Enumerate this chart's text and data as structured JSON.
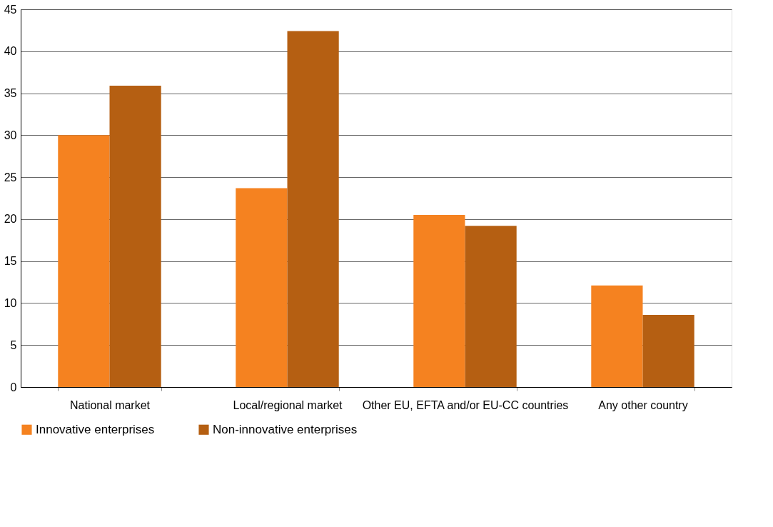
{
  "chart_data": {
    "type": "bar",
    "categories": [
      "National market",
      "Local/regional market",
      "Other EU, EFTA and/or EU-CC countries",
      "Any other country"
    ],
    "series": [
      {
        "name": "Innovative enterprises",
        "color": "#f58220",
        "values": [
          30.0,
          23.7,
          20.5,
          12.1
        ]
      },
      {
        "name": "Non-innovative enterprises",
        "color": "#b55f12",
        "values": [
          35.9,
          42.4,
          19.2,
          8.6
        ]
      }
    ],
    "ylim": [
      0,
      45
    ],
    "yticks": [
      0,
      5,
      10,
      15,
      20,
      25,
      30,
      35,
      40,
      45
    ],
    "grid": "y",
    "legend": "bottom"
  }
}
